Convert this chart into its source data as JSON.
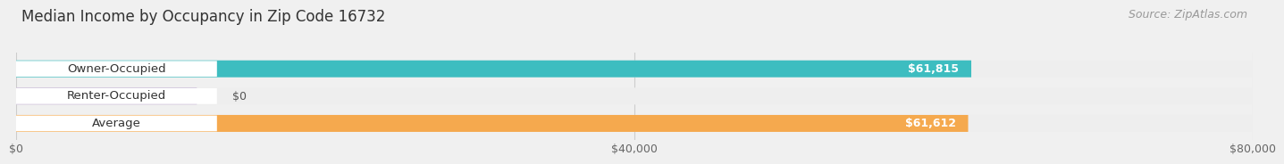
{
  "title": "Median Income by Occupancy in Zip Code 16732",
  "source": "Source: ZipAtlas.com",
  "categories": [
    "Owner-Occupied",
    "Renter-Occupied",
    "Average"
  ],
  "values": [
    61815,
    0,
    61612
  ],
  "bar_colors": [
    "#3dbdc0",
    "#c9b8d8",
    "#f5a94e"
  ],
  "bar_labels": [
    "$61,815",
    "$0",
    "$61,612"
  ],
  "xlim": [
    0,
    80000
  ],
  "xticks": [
    0,
    40000,
    80000
  ],
  "xticklabels": [
    "$0",
    "$40,000",
    "$80,000"
  ],
  "background_color": "#f0f0f0",
  "bar_bg_color": "#e8e8e8",
  "bar_bg_color2": "#eeeeee",
  "white_label_bg": "#ffffff",
  "title_fontsize": 12,
  "source_fontsize": 9,
  "label_fontsize": 9.5,
  "tick_fontsize": 9,
  "value_label_fontsize": 9
}
